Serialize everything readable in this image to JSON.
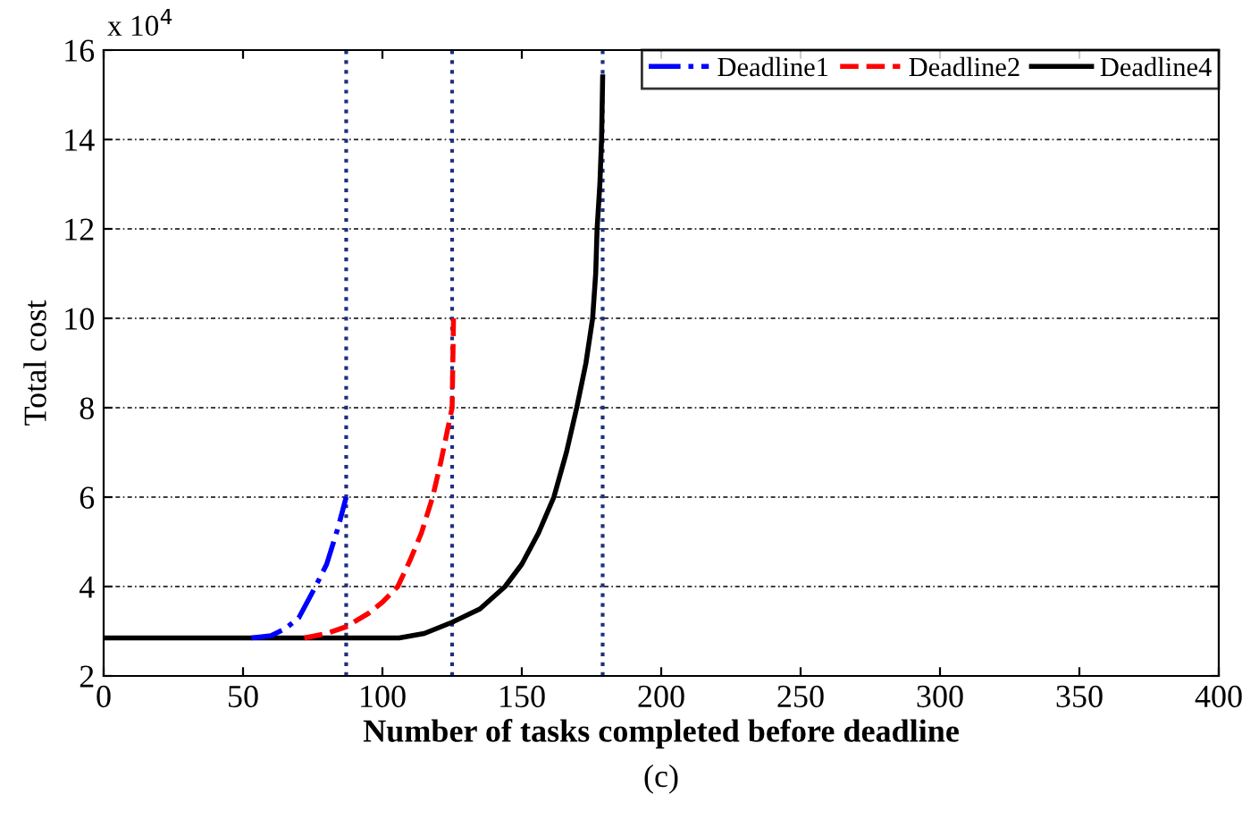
{
  "chart_data": {
    "type": "line",
    "xlabel": "Number of tasks completed before deadline",
    "ylabel": "Total cost",
    "xlim": [
      0,
      400
    ],
    "xticks": [
      0,
      50,
      100,
      150,
      200,
      250,
      300,
      350,
      400
    ],
    "ylim": [
      2,
      16
    ],
    "yticks": [
      2,
      4,
      6,
      8,
      10,
      12,
      14,
      16
    ],
    "grid": "y",
    "legend": "top right",
    "annotations": [
      "x 10$^{4}$",
      "(c)"
    ],
    "ref_lines": [
      {
        "axis": "x",
        "value": 87,
        "color": "#1f2f80",
        "line_style": "dotted"
      },
      {
        "axis": "x",
        "value": 125,
        "color": "#1f2f80",
        "line_style": "dotted"
      },
      {
        "axis": "x",
        "value": 179,
        "color": "#1f2f80",
        "line_style": "dotted"
      }
    ],
    "series": [
      {
        "name": "Deadline1",
        "color": "#0000ff",
        "line_style": "dashdot",
        "x": [
          53,
          60,
          65,
          70,
          76,
          80,
          84,
          87
        ],
        "values": [
          2.85,
          2.9,
          3.05,
          3.3,
          4.0,
          4.5,
          5.3,
          6.0
        ]
      },
      {
        "name": "Deadline2",
        "color": "#ff0000",
        "line_style": "dashed",
        "x": [
          72,
          80,
          87,
          95,
          100,
          105.5,
          110,
          114,
          118,
          121,
          123,
          125,
          125.5
        ],
        "values": [
          2.85,
          2.95,
          3.1,
          3.4,
          3.65,
          4.0,
          4.6,
          5.2,
          6.0,
          6.8,
          7.4,
          8.0,
          10.0
        ]
      },
      {
        "name": "Deadline4",
        "color": "#000000",
        "line_style": "solid",
        "x": [
          0,
          106,
          115,
          125,
          135,
          144,
          150,
          156,
          161.5,
          166,
          169.7,
          173,
          175.4,
          176.5,
          177,
          178,
          178.6,
          179
        ],
        "values": [
          2.85,
          2.85,
          2.95,
          3.2,
          3.5,
          4.0,
          4.5,
          5.2,
          6.0,
          7.0,
          8.0,
          9.0,
          10.0,
          11.0,
          12.0,
          13.0,
          14.0,
          15.4
        ]
      }
    ]
  }
}
